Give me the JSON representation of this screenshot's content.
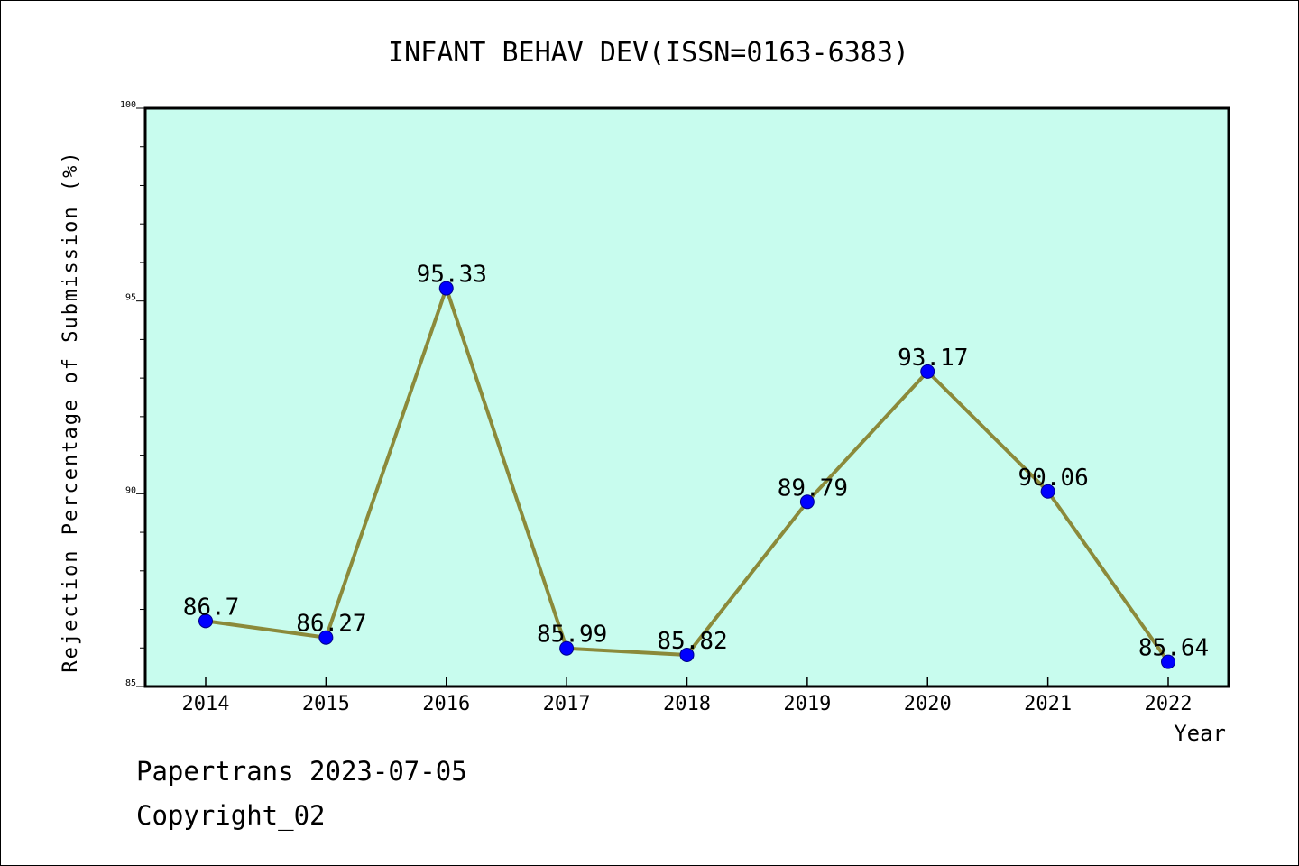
{
  "chart_data": {
    "type": "line",
    "title": "INFANT BEHAV DEV(ISSN=0163-6383)",
    "xlabel": "Year",
    "ylabel": "Rejection Percentage of Submission (%)",
    "ylim": [
      85,
      100
    ],
    "yticks": [
      85,
      90,
      95,
      100
    ],
    "x": [
      "2014",
      "2015",
      "2016",
      "2017",
      "2018",
      "2019",
      "2020",
      "2021",
      "2022"
    ],
    "series": [
      {
        "values": [
          86.7,
          86.27,
          95.33,
          85.99,
          85.82,
          89.79,
          93.17,
          90.06,
          85.64
        ],
        "labels": [
          "86.7",
          "86.27",
          "95.33",
          "85.99",
          "85.82",
          "89.79",
          "93.17",
          "90.06",
          "85.64"
        ],
        "line_color": "#8b8a3a",
        "marker_color": "#0000ff"
      }
    ],
    "plot_background": "#c8fcee",
    "grid": false
  },
  "footer": {
    "line1": "Papertrans 2023-07-05",
    "line2": "Copyright_02"
  }
}
